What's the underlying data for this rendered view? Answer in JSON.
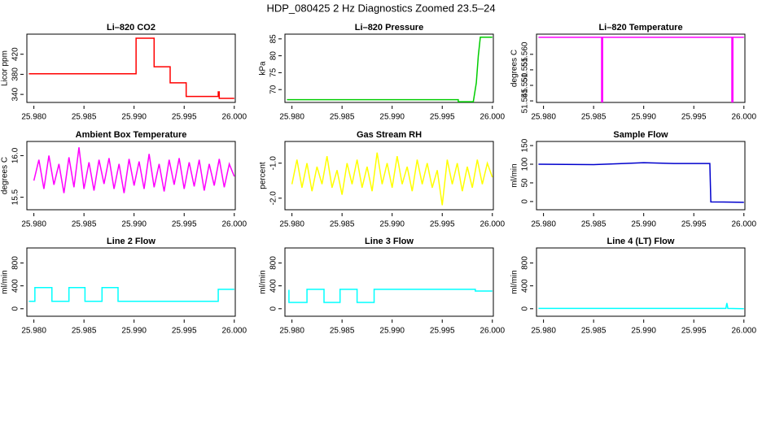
{
  "title": "HDP_080425  2 Hz Diagnostics Zoomed 23.5–24",
  "chart_data": [
    {
      "type": "line",
      "title": "Li–820 CO2",
      "ylabel": "Licor ppm",
      "color": "#ff0000",
      "x": [
        25.9795,
        25.9902,
        25.9902,
        25.992,
        25.992,
        25.9936,
        25.9936,
        25.9952,
        25.9952,
        25.9984,
        25.9984,
        25.9985,
        25.9985,
        26.0
      ],
      "values": [
        381,
        381,
        452,
        452,
        395,
        395,
        363,
        363,
        336,
        336,
        345,
        345,
        332,
        332
      ],
      "xlim": [
        25.9793,
        26.0001
      ],
      "xticks": [
        {
          "value": 25.98,
          "label": "25.980"
        },
        {
          "value": 25.985,
          "label": "25.985"
        },
        {
          "value": 25.99,
          "label": "25.990"
        },
        {
          "value": 25.995,
          "label": "25.995"
        },
        {
          "value": 26.0,
          "label": "26.000"
        }
      ],
      "ylim": [
        324,
        460
      ],
      "yticks": [
        340,
        380,
        420
      ]
    },
    {
      "type": "line",
      "title": "Li–820 Pressure",
      "ylabel": "kPa",
      "color": "#00cd00",
      "x": [
        25.9795,
        25.9966,
        25.9966,
        25.9981,
        25.9984,
        25.9986,
        25.9988,
        26.0
      ],
      "values": [
        67,
        67,
        66.4,
        66.4,
        72,
        80,
        85.5,
        85.5
      ],
      "xlim": [
        25.9793,
        26.0001
      ],
      "xticks": [
        {
          "value": 25.98,
          "label": "25.980"
        },
        {
          "value": 25.985,
          "label": "25.985"
        },
        {
          "value": 25.99,
          "label": "25.990"
        },
        {
          "value": 25.995,
          "label": "25.995"
        },
        {
          "value": 26.0,
          "label": "26.000"
        }
      ],
      "ylim": [
        66.2,
        86.4
      ],
      "yticks": [
        70,
        75,
        80,
        85
      ]
    },
    {
      "type": "line",
      "title": "Li–820 Temperature",
      "ylabel": "degrees C",
      "color": "#ff00ff",
      "x": [
        25.9795,
        25.9858,
        25.9858,
        25.9859,
        25.9859,
        25.9988,
        25.9988,
        25.9989,
        25.9989,
        26.0
      ],
      "values": [
        51.5655,
        51.5655,
        51.5447,
        51.5447,
        51.5655,
        51.5655,
        51.5447,
        51.5447,
        51.5655,
        51.5655
      ],
      "xlim": [
        25.9793,
        26.0001
      ],
      "xticks": [
        {
          "value": 25.98,
          "label": "25.980"
        },
        {
          "value": 25.985,
          "label": "25.985"
        },
        {
          "value": 25.99,
          "label": "25.990"
        },
        {
          "value": 25.995,
          "label": "25.995"
        },
        {
          "value": 26.0,
          "label": "26.000"
        }
      ],
      "ylim": [
        51.5445,
        51.5665
      ],
      "yticks": [
        {
          "value": 51.545,
          "label": "51.545"
        },
        {
          "value": 51.55,
          "label": "51.550"
        },
        {
          "value": 51.555,
          "label": "51.555"
        },
        {
          "value": 51.56,
          "label": "51.560"
        }
      ]
    },
    {
      "type": "line",
      "title": "Ambient Box Temperature",
      "ylabel": "degrees C",
      "color": "#ff00ff",
      "x": [
        25.98,
        25.9805,
        25.981,
        25.9815,
        25.982,
        25.9825,
        25.983,
        25.9835,
        25.984,
        25.9845,
        25.985,
        25.9855,
        25.986,
        25.9865,
        25.987,
        25.9875,
        25.988,
        25.9885,
        25.989,
        25.9895,
        25.99,
        25.9905,
        25.991,
        25.9915,
        25.992,
        25.9925,
        25.993,
        25.9935,
        25.994,
        25.9945,
        25.995,
        25.9955,
        25.996,
        25.9965,
        25.997,
        25.9975,
        25.998,
        25.9985,
        25.999,
        25.9995,
        26.0
      ],
      "values": [
        15.7,
        15.95,
        15.6,
        16.0,
        15.65,
        15.9,
        15.55,
        15.98,
        15.62,
        16.1,
        15.6,
        15.92,
        15.58,
        15.95,
        15.66,
        15.97,
        15.6,
        15.9,
        15.55,
        15.96,
        15.64,
        15.93,
        15.6,
        16.02,
        15.62,
        15.9,
        15.57,
        15.95,
        15.65,
        15.97,
        15.6,
        15.92,
        15.63,
        15.95,
        15.58,
        15.9,
        15.64,
        15.96,
        15.62,
        15.9,
        15.75
      ],
      "xlim": [
        25.9793,
        26.0001
      ],
      "xticks": [
        {
          "value": 25.98,
          "label": "25.980"
        },
        {
          "value": 25.985,
          "label": "25.985"
        },
        {
          "value": 25.99,
          "label": "25.990"
        },
        {
          "value": 25.995,
          "label": "25.995"
        },
        {
          "value": 26.0,
          "label": "26.000"
        }
      ],
      "ylim": [
        15.35,
        16.17
      ],
      "yticks": [
        {
          "value": 15.5,
          "label": "15.5"
        },
        {
          "value": 16.0,
          "label": "16.0"
        }
      ]
    },
    {
      "type": "line",
      "title": "Gas Stream RH",
      "ylabel": "percent",
      "color": "#ffff00",
      "x": [
        25.98,
        25.9805,
        25.981,
        25.9815,
        25.982,
        25.9825,
        25.983,
        25.9835,
        25.984,
        25.9845,
        25.985,
        25.9855,
        25.986,
        25.9865,
        25.987,
        25.9875,
        25.988,
        25.9885,
        25.989,
        25.9895,
        25.99,
        25.9905,
        25.991,
        25.9915,
        25.992,
        25.9925,
        25.993,
        25.9935,
        25.994,
        25.9945,
        25.995,
        25.9955,
        25.996,
        25.9965,
        25.997,
        25.9975,
        25.998,
        25.9985,
        25.999,
        25.9995,
        26.0
      ],
      "values": [
        -1.6,
        -0.9,
        -1.7,
        -1.0,
        -1.8,
        -1.1,
        -1.6,
        -0.8,
        -1.7,
        -1.2,
        -1.9,
        -1.0,
        -1.6,
        -0.9,
        -1.7,
        -1.1,
        -1.8,
        -0.7,
        -1.6,
        -1.0,
        -1.7,
        -0.8,
        -1.6,
        -1.1,
        -1.8,
        -0.9,
        -1.6,
        -1.0,
        -1.7,
        -1.2,
        -2.2,
        -0.9,
        -1.6,
        -1.0,
        -1.8,
        -1.1,
        -1.7,
        -0.9,
        -1.6,
        -1.0,
        -1.4
      ],
      "xlim": [
        25.9793,
        26.0001
      ],
      "xticks": [
        {
          "value": 25.98,
          "label": "25.980"
        },
        {
          "value": 25.985,
          "label": "25.985"
        },
        {
          "value": 25.99,
          "label": "25.990"
        },
        {
          "value": 25.995,
          "label": "25.995"
        },
        {
          "value": 26.0,
          "label": "26.000"
        }
      ],
      "ylim": [
        -2.33,
        -0.38
      ],
      "yticks": [
        {
          "value": -2.0,
          "label": "-2.0"
        },
        {
          "value": -1.0,
          "label": "-1.0"
        }
      ]
    },
    {
      "type": "line",
      "title": "Sample Flow",
      "ylabel": "ml/min",
      "color": "#0000cd",
      "x": [
        25.9795,
        25.985,
        25.988,
        25.99,
        25.993,
        25.9966,
        25.9967,
        26.0
      ],
      "values": [
        100,
        99,
        102,
        104,
        102,
        102,
        -1,
        -2
      ],
      "xlim": [
        25.9793,
        26.0001
      ],
      "xticks": [
        {
          "value": 25.98,
          "label": "25.980"
        },
        {
          "value": 25.985,
          "label": "25.985"
        },
        {
          "value": 25.99,
          "label": "25.990"
        },
        {
          "value": 25.995,
          "label": "25.995"
        },
        {
          "value": 26.0,
          "label": "26.000"
        }
      ],
      "ylim": [
        -22,
        161
      ],
      "yticks": [
        0,
        50,
        100,
        150
      ]
    },
    {
      "type": "line",
      "title": "Line 2 Flow",
      "ylabel": "ml/min",
      "color": "#00ffff",
      "x": [
        25.9795,
        25.9801,
        25.9801,
        25.9818,
        25.9818,
        25.9835,
        25.9835,
        25.9851,
        25.9851,
        25.9868,
        25.9868,
        25.9884,
        25.9884,
        25.9984,
        25.9984,
        26.0
      ],
      "values": [
        130,
        130,
        370,
        370,
        130,
        130,
        370,
        370,
        130,
        130,
        370,
        370,
        130,
        130,
        340,
        340
      ],
      "xlim": [
        25.9793,
        26.0001
      ],
      "xticks": [
        {
          "value": 25.98,
          "label": "25.980"
        },
        {
          "value": 25.985,
          "label": "25.985"
        },
        {
          "value": 25.99,
          "label": "25.990"
        },
        {
          "value": 25.995,
          "label": "25.995"
        },
        {
          "value": 26.0,
          "label": "26.000"
        }
      ],
      "ylim": [
        -131,
        1062
      ],
      "yticks": [
        0,
        400,
        800
      ]
    },
    {
      "type": "line",
      "title": "Line 3 Flow",
      "ylabel": "ml/min",
      "color": "#00ffff",
      "x": [
        25.9797,
        25.9797,
        25.9815,
        25.9815,
        25.9832,
        25.9832,
        25.9848,
        25.9848,
        25.9865,
        25.9865,
        25.9882,
        25.9882,
        25.9983,
        25.9983,
        26.0
      ],
      "values": [
        330,
        110,
        110,
        340,
        340,
        110,
        110,
        340,
        340,
        110,
        110,
        340,
        340,
        310,
        310
      ],
      "xlim": [
        25.9793,
        26.0001
      ],
      "xticks": [
        {
          "value": 25.98,
          "label": "25.980"
        },
        {
          "value": 25.985,
          "label": "25.985"
        },
        {
          "value": 25.99,
          "label": "25.990"
        },
        {
          "value": 25.995,
          "label": "25.995"
        },
        {
          "value": 26.0,
          "label": "26.000"
        }
      ],
      "ylim": [
        -131,
        1062
      ],
      "yticks": [
        0,
        400,
        800
      ]
    },
    {
      "type": "line",
      "title": "Line 4 (LT) Flow",
      "ylabel": "ml/min",
      "color": "#00ffff",
      "x": [
        25.9795,
        25.9982,
        25.9983,
        25.9984,
        26.0
      ],
      "values": [
        5,
        5,
        100,
        5,
        0
      ],
      "xlim": [
        25.9793,
        26.0001
      ],
      "xticks": [
        {
          "value": 25.98,
          "label": "25.980"
        },
        {
          "value": 25.985,
          "label": "25.985"
        },
        {
          "value": 25.99,
          "label": "25.990"
        },
        {
          "value": 25.995,
          "label": "25.995"
        },
        {
          "value": 26.0,
          "label": "26.000"
        }
      ],
      "ylim": [
        -131,
        1062
      ],
      "yticks": [
        0,
        400,
        800
      ]
    }
  ]
}
